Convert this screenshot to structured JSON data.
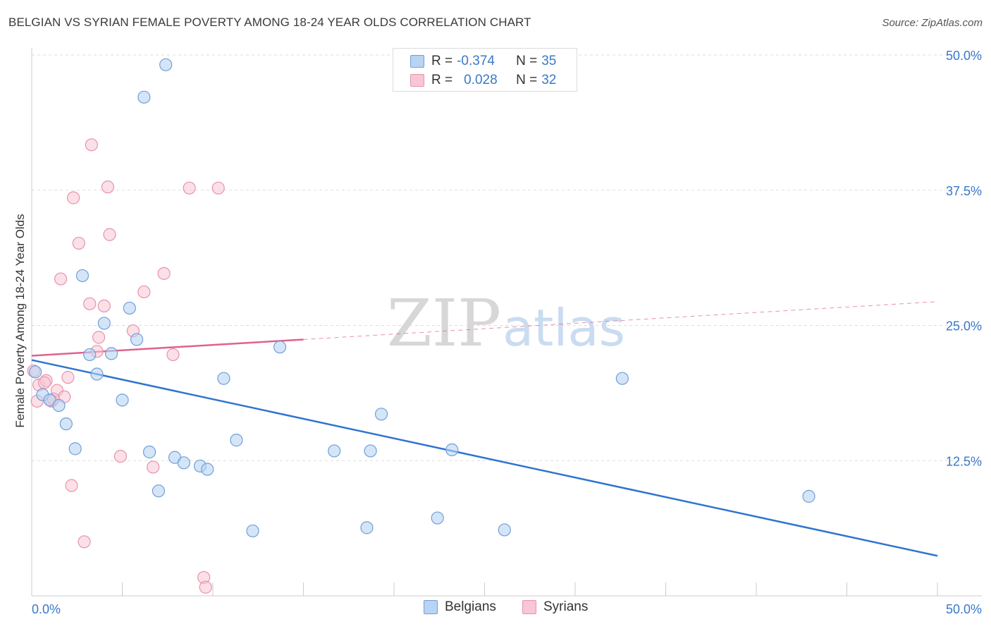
{
  "title": "BELGIAN VS SYRIAN FEMALE POVERTY AMONG 18-24 YEAR OLDS CORRELATION CHART",
  "source": "Source: ZipAtlas.com",
  "watermark": {
    "zip": "ZIP",
    "atlas": "atlas"
  },
  "legend_top": [
    {
      "r_label": "R =",
      "r_value": "-0.374",
      "n_label": "N =",
      "n_value": "35"
    },
    {
      "r_label": "R =",
      "r_value": "0.028",
      "n_label": "N =",
      "n_value": "32"
    }
  ],
  "legend_bottom": {
    "belgians": "Belgians",
    "syrians": "Syrians"
  },
  "colors": {
    "belgian_fill": "#b9d3f3",
    "belgian_stroke": "#6f9fd8",
    "belgian_line": "#2f74d0",
    "syrian_fill": "#f8c6d4",
    "syrian_stroke": "#e892ad",
    "syrian_line": "#e0628c",
    "axis_label": "#3a78c9",
    "grid": "#dddddd"
  },
  "chart_data": {
    "type": "scatter",
    "title": "BELGIAN VS SYRIAN FEMALE POVERTY AMONG 18-24 YEAR OLDS CORRELATION CHART",
    "xlabel": "",
    "ylabel": "Female Poverty Among 18-24 Year Olds",
    "xlim": [
      0,
      50
    ],
    "ylim": [
      0,
      50
    ],
    "x_tick_labels": [
      "0.0%",
      "50.0%"
    ],
    "y_ticks": [
      12.5,
      25.0,
      37.5,
      50.0
    ],
    "y_tick_labels": [
      "12.5%",
      "25.0%",
      "37.5%",
      "50.0%"
    ],
    "grid": "horizontal dashed",
    "legend_position": "top-center",
    "series": [
      {
        "name": "Belgians",
        "points": [
          [
            0.2,
            20.7
          ],
          [
            0.6,
            18.6
          ],
          [
            1.0,
            18.1
          ],
          [
            1.5,
            17.6
          ],
          [
            1.9,
            15.9
          ],
          [
            2.4,
            13.6
          ],
          [
            2.8,
            29.6
          ],
          [
            3.2,
            22.3
          ],
          [
            3.6,
            20.5
          ],
          [
            4.0,
            25.2
          ],
          [
            4.4,
            22.4
          ],
          [
            5.0,
            18.1
          ],
          [
            5.4,
            26.6
          ],
          [
            5.8,
            23.7
          ],
          [
            6.2,
            46.1
          ],
          [
            6.5,
            13.3
          ],
          [
            7.0,
            9.7
          ],
          [
            7.4,
            49.1
          ],
          [
            7.9,
            12.8
          ],
          [
            8.4,
            12.3
          ],
          [
            9.3,
            12.0
          ],
          [
            9.7,
            11.7
          ],
          [
            10.6,
            20.1
          ],
          [
            11.3,
            14.4
          ],
          [
            12.2,
            6.0
          ],
          [
            13.7,
            23.0
          ],
          [
            16.7,
            13.4
          ],
          [
            18.5,
            6.3
          ],
          [
            18.7,
            13.4
          ],
          [
            19.3,
            16.8
          ],
          [
            22.4,
            7.2
          ],
          [
            23.2,
            13.5
          ],
          [
            26.1,
            6.1
          ],
          [
            32.6,
            20.1
          ],
          [
            42.9,
            9.2
          ]
        ],
        "trend": {
          "x": [
            0,
            50
          ],
          "y": [
            21.8,
            3.7
          ],
          "style": "solid"
        }
      },
      {
        "name": "Syrians",
        "points": [
          [
            0.1,
            20.8
          ],
          [
            0.4,
            19.5
          ],
          [
            0.8,
            19.9
          ],
          [
            1.1,
            18.0
          ],
          [
            1.4,
            19.0
          ],
          [
            1.8,
            18.4
          ],
          [
            2.0,
            20.2
          ],
          [
            2.3,
            36.8
          ],
          [
            2.6,
            32.6
          ],
          [
            3.2,
            27.0
          ],
          [
            3.6,
            22.6
          ],
          [
            3.7,
            23.9
          ],
          [
            4.0,
            26.8
          ],
          [
            4.3,
            33.4
          ],
          [
            4.9,
            12.9
          ],
          [
            5.6,
            24.5
          ],
          [
            6.2,
            28.1
          ],
          [
            6.7,
            11.9
          ],
          [
            7.3,
            29.8
          ],
          [
            7.8,
            22.3
          ],
          [
            8.7,
            37.7
          ],
          [
            9.5,
            1.7
          ],
          [
            9.6,
            0.8
          ],
          [
            10.3,
            37.7
          ],
          [
            3.3,
            41.7
          ],
          [
            2.2,
            10.2
          ],
          [
            2.9,
            5.0
          ],
          [
            1.6,
            29.3
          ],
          [
            0.3,
            18.0
          ],
          [
            4.2,
            37.8
          ],
          [
            1.2,
            18.2
          ],
          [
            0.7,
            19.7
          ]
        ],
        "trend": {
          "x": [
            0,
            15,
            50
          ],
          "y": [
            22.2,
            23.7,
            27.2
          ],
          "style": "solid-then-dashed"
        }
      }
    ]
  }
}
